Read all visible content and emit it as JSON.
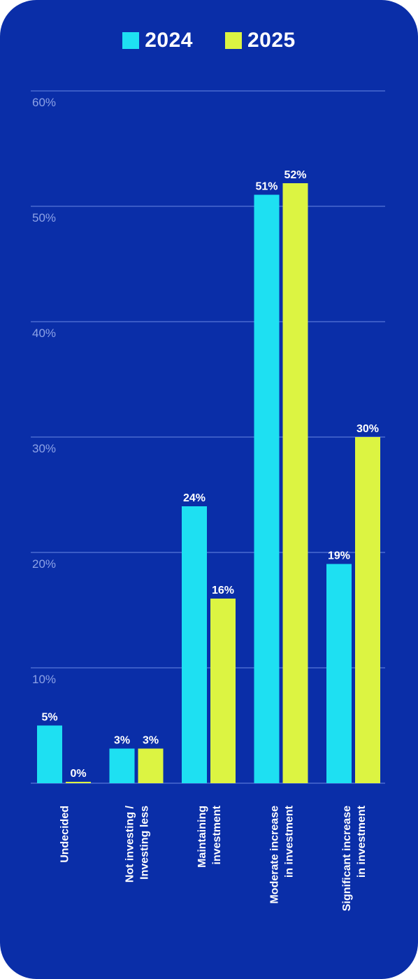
{
  "colors": {
    "background": "#0a2ea8",
    "series_2024": "#1ee0f2",
    "series_2025": "#dcf442",
    "grid": "#4a6ad0",
    "tick": "#8da2e6",
    "text": "#ffffff"
  },
  "legend": [
    {
      "label": "2024"
    },
    {
      "label": "2025"
    }
  ],
  "chart_data": {
    "type": "bar",
    "categories": [
      "Undecided",
      "Not investing / Investing less",
      "Maintaining investment",
      "Moderate increase in investment",
      "Significant increase in investment"
    ],
    "category_lines": [
      [
        "Undecided"
      ],
      [
        "Not investing /",
        "Investing less"
      ],
      [
        "Maintaining",
        "investment"
      ],
      [
        "Moderate increase",
        "in investment"
      ],
      [
        "Significant increase",
        "in investment"
      ]
    ],
    "series": [
      {
        "name": "2024",
        "values": [
          5,
          3,
          24,
          51,
          19
        ],
        "value_labels": [
          "5%",
          "3%",
          "24%",
          "51%",
          "19%"
        ]
      },
      {
        "name": "2025",
        "values": [
          0,
          3,
          16,
          52,
          30
        ],
        "value_labels": [
          "0%",
          "3%",
          "16%",
          "52%",
          "30%"
        ]
      }
    ],
    "yticks": [
      10,
      20,
      30,
      40,
      50,
      60
    ],
    "ytick_labels": [
      "10%",
      "20%",
      "30%",
      "40%",
      "50%",
      "60%"
    ],
    "ylim": [
      0,
      60
    ],
    "grid": true,
    "legend_position": "top-center"
  }
}
